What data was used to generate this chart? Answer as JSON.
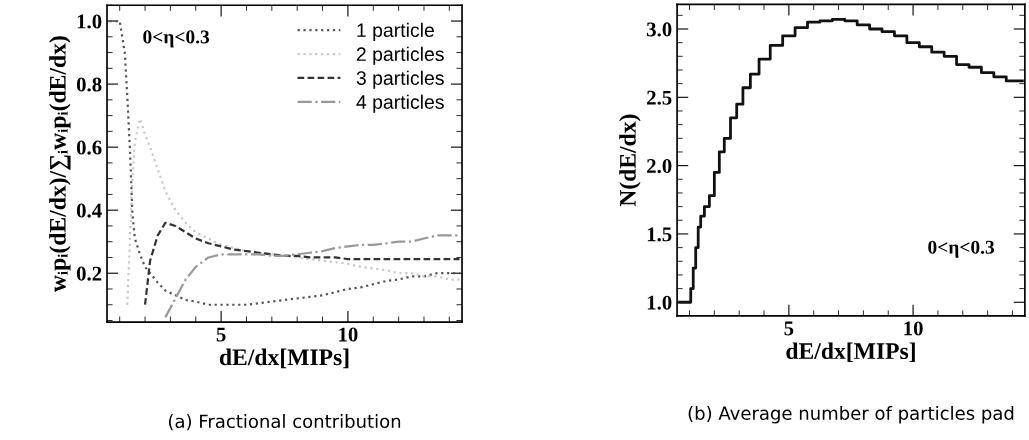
{
  "chart_data": [
    {
      "type": "line",
      "title": "(a) Fractional contribution",
      "xlabel": "dE/dx[MIPs]",
      "ylabel": "wᵢpᵢ(dE/dx)/∑ᵢwᵢpᵢ(dE/dx)",
      "annotations": [
        "0<η<0.3"
      ],
      "x": [
        0.6,
        0.8,
        1.0,
        1.2,
        1.3,
        1.4,
        1.5,
        1.6,
        1.8,
        2.0,
        2.2,
        2.5,
        2.8,
        3.2,
        3.6,
        4.0,
        4.5,
        5.0,
        5.5,
        6.0,
        6.5,
        7.0,
        7.5,
        8.0,
        8.5,
        9.0,
        9.5,
        10.0,
        10.5,
        11.0,
        11.5,
        12.0,
        12.5,
        13.0,
        13.5,
        14.0,
        14.4
      ],
      "series": [
        {
          "name": "1 particle",
          "color": "#555555",
          "line_style": "dotted",
          "values": [
            1.0,
            1.0,
            1.0,
            0.9,
            0.76,
            0.6,
            0.39,
            0.31,
            0.26,
            0.22,
            0.2,
            0.17,
            0.145,
            0.13,
            0.115,
            0.11,
            0.1,
            0.1,
            0.1,
            0.1,
            0.105,
            0.11,
            0.115,
            0.12,
            0.125,
            0.13,
            0.14,
            0.15,
            0.155,
            0.165,
            0.175,
            0.18,
            0.19,
            0.19,
            0.2,
            0.2,
            0.2
          ]
        },
        {
          "name": "2 particles",
          "color": "#c8c8c8",
          "line_style": "dotted",
          "values": [
            null,
            null,
            null,
            null,
            0.1,
            0.3,
            0.5,
            0.62,
            0.69,
            0.64,
            0.6,
            0.53,
            0.46,
            0.4,
            0.36,
            0.33,
            0.31,
            0.29,
            0.28,
            0.27,
            0.265,
            0.26,
            0.255,
            0.25,
            0.245,
            0.24,
            0.235,
            0.23,
            0.22,
            0.215,
            0.21,
            0.2,
            0.2,
            0.19,
            0.19,
            0.18,
            0.18
          ]
        },
        {
          "name": "3 particles",
          "color": "#333333",
          "line_style": "dashed",
          "values": [
            null,
            null,
            null,
            null,
            null,
            null,
            null,
            null,
            null,
            0.1,
            0.24,
            0.32,
            0.36,
            0.35,
            0.33,
            0.31,
            0.295,
            0.285,
            0.275,
            0.27,
            0.265,
            0.26,
            0.255,
            0.255,
            0.25,
            0.25,
            0.25,
            0.245,
            0.245,
            0.245,
            0.245,
            0.245,
            0.245,
            0.245,
            0.245,
            0.245,
            0.245
          ]
        },
        {
          "name": "4 particles",
          "color": "#999999",
          "line_style": "dashdot",
          "values": [
            null,
            null,
            null,
            null,
            null,
            null,
            null,
            null,
            null,
            null,
            null,
            null,
            0.06,
            0.12,
            0.18,
            0.22,
            0.25,
            0.26,
            0.26,
            0.26,
            0.26,
            0.255,
            0.255,
            0.26,
            0.265,
            0.27,
            0.28,
            0.285,
            0.29,
            0.29,
            0.295,
            0.3,
            0.3,
            0.31,
            0.32,
            0.32,
            0.32
          ]
        }
      ],
      "xlim": [
        0.5,
        14.5
      ],
      "ylim": [
        0.045,
        1.05
      ],
      "xticks": [
        5,
        10
      ],
      "yticks": [
        0.2,
        0.4,
        0.6,
        0.8,
        {
          "value": 1.0,
          "label": "1.0"
        }
      ],
      "legend": "top right",
      "grid": false
    },
    {
      "type": "step",
      "title": "(b) Average number of particles pad",
      "xlabel": "dE/dx[MIPs]",
      "ylabel": "N(dE/dx)",
      "annotations": [
        "0<η<0.3"
      ],
      "x": [
        0.6,
        0.8,
        1.0,
        1.1,
        1.2,
        1.3,
        1.4,
        1.5,
        1.7,
        1.9,
        2.1,
        2.3,
        2.5,
        2.8,
        3.0,
        3.3,
        3.6,
        4.0,
        4.5,
        5.0,
        5.5,
        6.0,
        6.5,
        7.0,
        7.5,
        8.0,
        8.5,
        9.0,
        9.5,
        10.0,
        10.5,
        11.0,
        11.5,
        12.0,
        12.5,
        13.0,
        13.5,
        14.0,
        14.4
      ],
      "series": [
        {
          "color": "#111111",
          "values": [
            1.0,
            1.0,
            1.0,
            1.1,
            1.25,
            1.4,
            1.55,
            1.63,
            1.7,
            1.78,
            1.95,
            2.1,
            2.2,
            2.35,
            2.45,
            2.57,
            2.67,
            2.78,
            2.88,
            2.95,
            3.01,
            3.05,
            3.06,
            3.07,
            3.06,
            3.03,
            3.0,
            2.98,
            2.95,
            2.9,
            2.87,
            2.83,
            2.8,
            2.74,
            2.72,
            2.68,
            2.65,
            2.62,
            2.62
          ]
        }
      ],
      "xlim": [
        0.5,
        14.5
      ],
      "ylim": [
        0.9,
        3.18
      ],
      "xticks": [
        5,
        10
      ],
      "yticks": [
        {
          "value": 1.0,
          "label": "1.0"
        },
        1.5,
        {
          "value": 2.0,
          "label": "2.0"
        },
        2.5,
        {
          "value": 3.0,
          "label": "3.0"
        }
      ],
      "grid": false
    }
  ]
}
